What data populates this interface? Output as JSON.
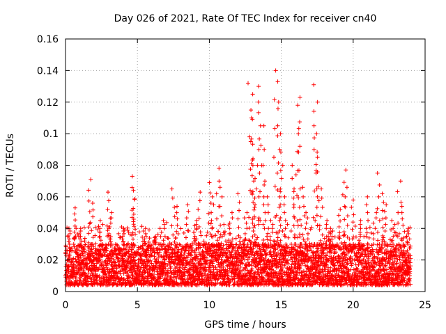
{
  "chart_data": {
    "type": "scatter",
    "title": "Day 026 of 2021, Rate Of TEC Index for receiver cn40",
    "xlabel": "GPS time / hours",
    "ylabel": "ROTI / TECUs",
    "xlim": [
      0,
      25
    ],
    "ylim": [
      0,
      0.16
    ],
    "xticks": [
      0,
      5,
      10,
      15,
      20,
      25
    ],
    "xtick_labels": [
      "0",
      "5",
      "10",
      "15",
      "20",
      "25"
    ],
    "yticks": [
      0,
      0.02,
      0.04,
      0.06,
      0.08,
      0.1,
      0.12,
      0.14,
      0.16
    ],
    "ytick_labels": [
      "0",
      "0.02",
      "0.04",
      "0.06",
      "0.08",
      "0.1",
      "0.12",
      "0.14",
      "0.16"
    ],
    "grid": true,
    "legend": "none",
    "marker": "plus",
    "series_color": "#ff0000",
    "x_data_range": [
      0,
      24
    ],
    "baseline_band": [
      0.004,
      0.03
    ],
    "peak_points": [
      {
        "x": 0.2,
        "y": 0.04
      },
      {
        "x": 0.6,
        "y": 0.053
      },
      {
        "x": 1.0,
        "y": 0.04
      },
      {
        "x": 1.7,
        "y": 0.071
      },
      {
        "x": 1.8,
        "y": 0.056
      },
      {
        "x": 2.5,
        "y": 0.045
      },
      {
        "x": 3.0,
        "y": 0.063
      },
      {
        "x": 3.1,
        "y": 0.05
      },
      {
        "x": 4.0,
        "y": 0.04
      },
      {
        "x": 4.7,
        "y": 0.073
      },
      {
        "x": 4.7,
        "y": 0.064
      },
      {
        "x": 4.8,
        "y": 0.049
      },
      {
        "x": 5.5,
        "y": 0.04
      },
      {
        "x": 6.2,
        "y": 0.035
      },
      {
        "x": 6.8,
        "y": 0.045
      },
      {
        "x": 7.5,
        "y": 0.065
      },
      {
        "x": 7.7,
        "y": 0.054
      },
      {
        "x": 8.5,
        "y": 0.055
      },
      {
        "x": 9.0,
        "y": 0.045
      },
      {
        "x": 9.3,
        "y": 0.063
      },
      {
        "x": 10.0,
        "y": 0.069
      },
      {
        "x": 10.2,
        "y": 0.06
      },
      {
        "x": 10.6,
        "y": 0.078
      },
      {
        "x": 10.8,
        "y": 0.066
      },
      {
        "x": 11.5,
        "y": 0.05
      },
      {
        "x": 12.1,
        "y": 0.062
      },
      {
        "x": 12.5,
        "y": 0.05
      },
      {
        "x": 12.8,
        "y": 0.132
      },
      {
        "x": 12.9,
        "y": 0.125
      },
      {
        "x": 13.0,
        "y": 0.11
      },
      {
        "x": 13.0,
        "y": 0.095
      },
      {
        "x": 13.1,
        "y": 0.08
      },
      {
        "x": 13.2,
        "y": 0.065
      },
      {
        "x": 13.4,
        "y": 0.13
      },
      {
        "x": 13.5,
        "y": 0.12
      },
      {
        "x": 13.7,
        "y": 0.105
      },
      {
        "x": 13.8,
        "y": 0.09
      },
      {
        "x": 14.0,
        "y": 0.06
      },
      {
        "x": 14.3,
        "y": 0.045
      },
      {
        "x": 14.6,
        "y": 0.14
      },
      {
        "x": 14.7,
        "y": 0.133
      },
      {
        "x": 14.8,
        "y": 0.12
      },
      {
        "x": 14.9,
        "y": 0.1
      },
      {
        "x": 15.0,
        "y": 0.08
      },
      {
        "x": 15.3,
        "y": 0.06
      },
      {
        "x": 15.8,
        "y": 0.08
      },
      {
        "x": 15.9,
        "y": 0.065
      },
      {
        "x": 16.1,
        "y": 0.118
      },
      {
        "x": 16.2,
        "y": 0.123
      },
      {
        "x": 16.3,
        "y": 0.1
      },
      {
        "x": 16.5,
        "y": 0.066
      },
      {
        "x": 16.8,
        "y": 0.05
      },
      {
        "x": 17.3,
        "y": 0.131
      },
      {
        "x": 17.4,
        "y": 0.12
      },
      {
        "x": 17.5,
        "y": 0.1
      },
      {
        "x": 17.6,
        "y": 0.085
      },
      {
        "x": 17.8,
        "y": 0.065
      },
      {
        "x": 18.2,
        "y": 0.045
      },
      {
        "x": 18.5,
        "y": 0.04
      },
      {
        "x": 19.0,
        "y": 0.052
      },
      {
        "x": 19.4,
        "y": 0.077
      },
      {
        "x": 19.5,
        "y": 0.066
      },
      {
        "x": 20.0,
        "y": 0.058
      },
      {
        "x": 20.4,
        "y": 0.045
      },
      {
        "x": 21.0,
        "y": 0.06
      },
      {
        "x": 21.5,
        "y": 0.05
      },
      {
        "x": 21.8,
        "y": 0.075
      },
      {
        "x": 22.0,
        "y": 0.062
      },
      {
        "x": 22.2,
        "y": 0.055
      },
      {
        "x": 22.8,
        "y": 0.045
      },
      {
        "x": 23.2,
        "y": 0.07
      },
      {
        "x": 23.5,
        "y": 0.054
      },
      {
        "x": 23.8,
        "y": 0.04
      }
    ]
  }
}
